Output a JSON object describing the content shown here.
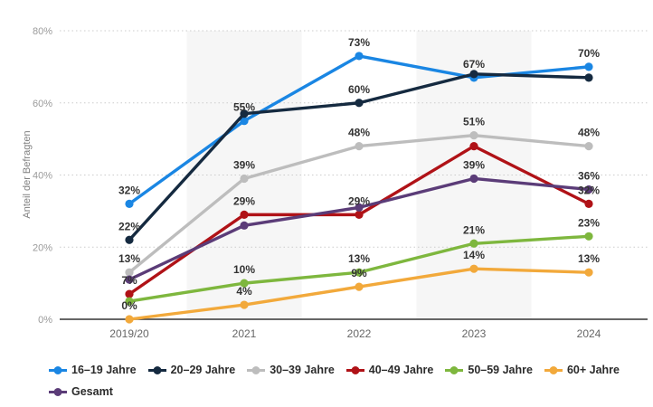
{
  "chart_data": {
    "type": "line",
    "title": "",
    "xlabel": "",
    "ylabel": "Anteil der Befragten",
    "ylim": [
      0,
      80
    ],
    "y_ticks": [
      {
        "value": 0,
        "label": "0%"
      },
      {
        "value": 20,
        "label": "20%"
      },
      {
        "value": 40,
        "label": "40%"
      },
      {
        "value": 60,
        "label": "60%"
      },
      {
        "value": 80,
        "label": "80%"
      }
    ],
    "categories": [
      "2019/20",
      "2021",
      "2022",
      "2023",
      "2024"
    ],
    "series": [
      {
        "name": "16–19 Jahre",
        "color": "#1a86e3",
        "values": [
          32,
          55,
          73,
          67,
          70
        ],
        "point_labels": [
          "32%",
          "55%",
          "73%",
          "67%",
          "70%"
        ]
      },
      {
        "name": "20–29 Jahre",
        "color": "#152a40",
        "values": [
          22,
          57,
          60,
          68,
          67
        ],
        "point_labels": [
          "22%",
          "",
          "60%",
          "",
          ""
        ]
      },
      {
        "name": "30–39 Jahre",
        "color": "#bdbdbd",
        "values": [
          13,
          39,
          48,
          51,
          48
        ],
        "point_labels": [
          "13%",
          "39%",
          "48%",
          "51%",
          "48%"
        ]
      },
      {
        "name": "40–49 Jahre",
        "color": "#b01217",
        "values": [
          7,
          29,
          29,
          48,
          32
        ],
        "point_labels": [
          "7%",
          "29%",
          "29%",
          "",
          "32%"
        ]
      },
      {
        "name": "50–59 Jahre",
        "color": "#7eb73e",
        "values": [
          5,
          10,
          13,
          21,
          23
        ],
        "point_labels": [
          "",
          "10%",
          "13%",
          "21%",
          "23%"
        ]
      },
      {
        "name": "60+ Jahre",
        "color": "#f2a93b",
        "values": [
          0,
          4,
          9,
          14,
          13
        ],
        "point_labels": [
          "0%",
          "4%",
          "9%",
          "14%",
          "13%"
        ]
      },
      {
        "name": "Gesamt",
        "color": "#5b3c78",
        "values": [
          11,
          26,
          31,
          39,
          36
        ],
        "point_labels": [
          "",
          "",
          "",
          "39%",
          "36%"
        ]
      }
    ],
    "legend_position": "bottom",
    "grid": "dotted-horizontal",
    "plot_band_categories": [
      1,
      3
    ],
    "style": {
      "plot_band": "#f6f6f6",
      "gridline": "#cccccc",
      "axis_line": "#333333",
      "tick_text": "#9a9a9a",
      "category_text": "#666666",
      "axis_title_text": "#7f7f7f",
      "data_label_text": "#333333",
      "legend_text": "#2b2b2b",
      "background": "#ffffff"
    }
  }
}
